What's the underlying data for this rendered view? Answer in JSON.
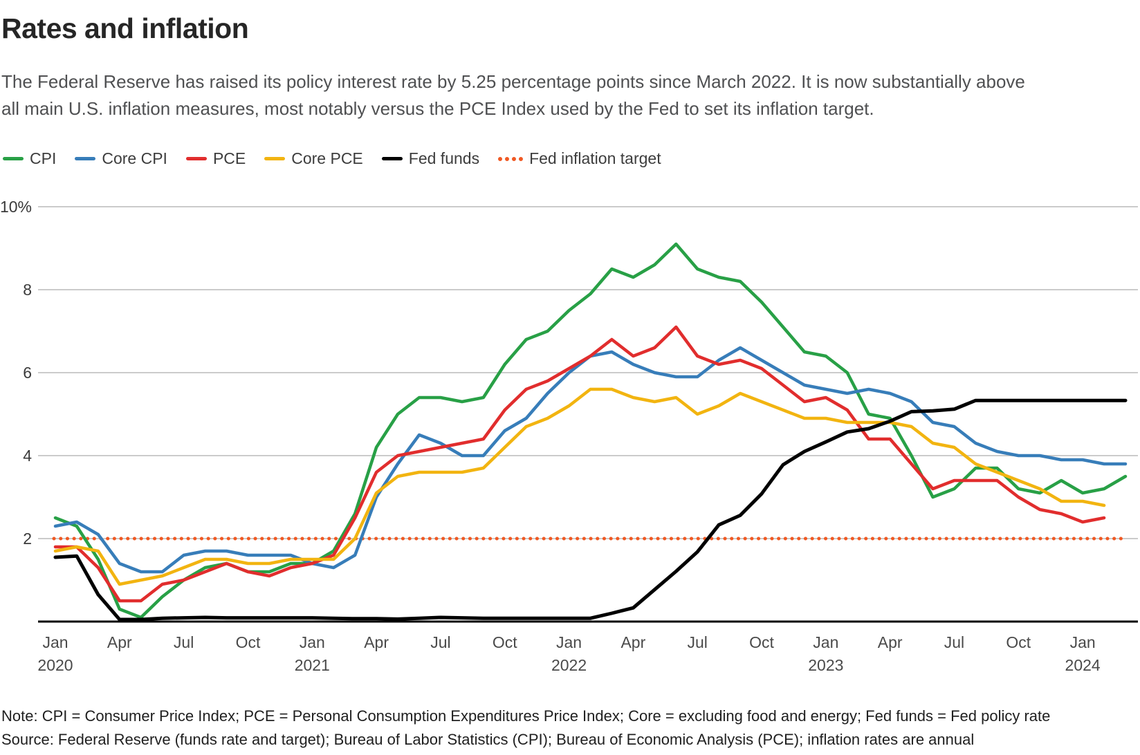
{
  "page": {
    "title": "Rates and inflation",
    "subtitle_line1": "The Federal Reserve has raised its policy interest rate by 5.25 percentage points since March 2022. It is now substantially above",
    "subtitle_line2": "all main U.S. inflation measures, most notably versus the PCE Index used by the Fed to set its inflation target."
  },
  "legend": {
    "items": [
      {
        "label": "CPI",
        "color": "#28a046",
        "style": "solid"
      },
      {
        "label": "Core CPI",
        "color": "#377db9",
        "style": "solid"
      },
      {
        "label": "PCE",
        "color": "#e12d2d",
        "style": "solid"
      },
      {
        "label": "Core PCE",
        "color": "#f2b410",
        "style": "solid"
      },
      {
        "label": "Fed funds",
        "color": "#000000",
        "style": "solid"
      },
      {
        "label": "Fed inflation target",
        "color": "#f05923",
        "style": "dotted"
      }
    ]
  },
  "chart_data": {
    "type": "line",
    "title": "Rates and inflation",
    "x_unit": "month",
    "x_start_label": "Jan 2020",
    "ylim": [
      0,
      10
    ],
    "grid": "horizontal",
    "y_ticks": [
      {
        "value": 10,
        "label": "10%"
      },
      {
        "value": 8,
        "label": "8"
      },
      {
        "value": 6,
        "label": "6"
      },
      {
        "value": 4,
        "label": "4"
      },
      {
        "value": 2,
        "label": "2"
      }
    ],
    "x_ticks": [
      {
        "month_index": 0,
        "label": "Jan",
        "year": "2020"
      },
      {
        "month_index": 3,
        "label": "Apr"
      },
      {
        "month_index": 6,
        "label": "Jul"
      },
      {
        "month_index": 9,
        "label": "Oct"
      },
      {
        "month_index": 12,
        "label": "Jan",
        "year": "2021"
      },
      {
        "month_index": 15,
        "label": "Apr"
      },
      {
        "month_index": 18,
        "label": "Jul"
      },
      {
        "month_index": 21,
        "label": "Oct"
      },
      {
        "month_index": 24,
        "label": "Jan",
        "year": "2022"
      },
      {
        "month_index": 27,
        "label": "Apr"
      },
      {
        "month_index": 30,
        "label": "Jul"
      },
      {
        "month_index": 33,
        "label": "Oct"
      },
      {
        "month_index": 36,
        "label": "Jan",
        "year": "2023"
      },
      {
        "month_index": 39,
        "label": "Apr"
      },
      {
        "month_index": 42,
        "label": "Jul"
      },
      {
        "month_index": 45,
        "label": "Oct"
      },
      {
        "month_index": 48,
        "label": "Jan",
        "year": "2024"
      }
    ],
    "target_line": {
      "label": "Fed inflation target",
      "value": 2,
      "color": "#f05923"
    },
    "series": [
      {
        "name": "CPI",
        "color": "#28a046",
        "width": 4.5,
        "values": [
          2.5,
          2.3,
          1.5,
          0.3,
          0.1,
          0.6,
          1.0,
          1.3,
          1.4,
          1.2,
          1.2,
          1.4,
          1.4,
          1.7,
          2.6,
          4.2,
          5.0,
          5.4,
          5.4,
          5.3,
          5.4,
          6.2,
          6.8,
          7.0,
          7.5,
          7.9,
          8.5,
          8.3,
          8.6,
          9.1,
          8.5,
          8.3,
          8.2,
          7.7,
          7.1,
          6.5,
          6.4,
          6.0,
          5.0,
          4.9,
          4.0,
          3.0,
          3.2,
          3.7,
          3.7,
          3.2,
          3.1,
          3.4,
          3.1,
          3.2,
          3.5
        ]
      },
      {
        "name": "Core CPI",
        "color": "#377db9",
        "width": 4.5,
        "values": [
          2.3,
          2.4,
          2.1,
          1.4,
          1.2,
          1.2,
          1.6,
          1.7,
          1.7,
          1.6,
          1.6,
          1.6,
          1.4,
          1.3,
          1.6,
          3.0,
          3.8,
          4.5,
          4.3,
          4.0,
          4.0,
          4.6,
          4.9,
          5.5,
          6.0,
          6.4,
          6.5,
          6.2,
          6.0,
          5.9,
          5.9,
          6.3,
          6.6,
          6.3,
          6.0,
          5.7,
          5.6,
          5.5,
          5.6,
          5.5,
          5.3,
          4.8,
          4.7,
          4.3,
          4.1,
          4.0,
          4.0,
          3.9,
          3.9,
          3.8,
          3.8
        ]
      },
      {
        "name": "PCE",
        "color": "#e12d2d",
        "width": 4.5,
        "values": [
          1.8,
          1.8,
          1.3,
          0.5,
          0.5,
          0.9,
          1.0,
          1.2,
          1.4,
          1.2,
          1.1,
          1.3,
          1.4,
          1.6,
          2.5,
          3.6,
          4.0,
          4.1,
          4.2,
          4.3,
          4.4,
          5.1,
          5.6,
          5.8,
          6.1,
          6.4,
          6.8,
          6.4,
          6.6,
          7.1,
          6.4,
          6.2,
          6.3,
          6.1,
          5.7,
          5.3,
          5.4,
          5.1,
          4.4,
          4.4,
          3.8,
          3.2,
          3.4,
          3.4,
          3.4,
          3.0,
          2.7,
          2.6,
          2.4,
          2.5
        ]
      },
      {
        "name": "Core PCE",
        "color": "#f2b410",
        "width": 4.5,
        "values": [
          1.7,
          1.8,
          1.7,
          0.9,
          1.0,
          1.1,
          1.3,
          1.5,
          1.5,
          1.4,
          1.4,
          1.5,
          1.5,
          1.5,
          2.0,
          3.1,
          3.5,
          3.6,
          3.6,
          3.6,
          3.7,
          4.2,
          4.7,
          4.9,
          5.2,
          5.6,
          5.6,
          5.4,
          5.3,
          5.4,
          5.0,
          5.2,
          5.5,
          5.3,
          5.1,
          4.9,
          4.9,
          4.8,
          4.8,
          4.8,
          4.7,
          4.3,
          4.2,
          3.8,
          3.6,
          3.4,
          3.2,
          2.9,
          2.9,
          2.8
        ]
      },
      {
        "name": "Fed funds",
        "color": "#000000",
        "width": 5,
        "values": [
          1.55,
          1.58,
          0.65,
          0.05,
          0.05,
          0.08,
          0.09,
          0.1,
          0.09,
          0.09,
          0.09,
          0.09,
          0.09,
          0.08,
          0.07,
          0.07,
          0.06,
          0.08,
          0.1,
          0.09,
          0.08,
          0.08,
          0.08,
          0.08,
          0.08,
          0.08,
          0.2,
          0.33,
          0.77,
          1.21,
          1.68,
          2.33,
          2.56,
          3.08,
          3.78,
          4.1,
          4.33,
          4.57,
          4.65,
          4.83,
          5.06,
          5.08,
          5.12,
          5.33,
          5.33,
          5.33,
          5.33,
          5.33,
          5.33,
          5.33,
          5.33
        ]
      }
    ]
  },
  "footer": {
    "note": "Note: CPI = Consumer Price Index; PCE = Personal Consumption Expenditures Price Index; Core = excluding food and energy; Fed funds = Fed policy rate",
    "source": "Source: Federal Reserve (funds rate and target); Bureau of Labor Statistics (CPI); Bureau of Economic Analysis (PCE); inflation rates are annual"
  }
}
